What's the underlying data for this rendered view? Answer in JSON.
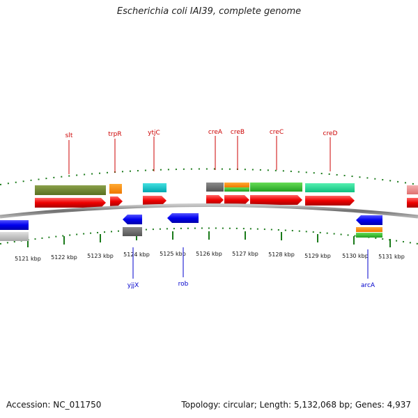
{
  "title": "Escherichia coli IAI39, complete genome",
  "footer": {
    "accession": "Accession: NC_011750",
    "topology": "Topology: circular; Length: 5,132,068 bp; Genes: 4,937"
  },
  "colors": {
    "top_label": "#cc0000",
    "bottom_label": "#0000cc",
    "tick": "#1a7a1a",
    "backbone": "#8a8a8a"
  },
  "scale_labels": [
    "5121 kbp",
    "5122 kbp",
    "5123 kbp",
    "5124 kbp",
    "5125 kbp",
    "5126 kbp",
    "5127 kbp",
    "5128 kbp",
    "5129 kbp",
    "5130 kbp",
    "5131 kbp"
  ],
  "genes_top": [
    {
      "name": "slt",
      "color": "#cc0000"
    },
    {
      "name": "trpR",
      "color": "#cc0000"
    },
    {
      "name": "ytjC",
      "color": "#cc0000"
    },
    {
      "name": "creA",
      "color": "#cc0000"
    },
    {
      "name": "creB",
      "color": "#cc0000"
    },
    {
      "name": "creC",
      "color": "#cc0000"
    },
    {
      "name": "creD",
      "color": "#cc0000"
    }
  ],
  "genes_bottom": [
    {
      "name": "yjjX",
      "color": "#0000cc"
    },
    {
      "name": "rob",
      "color": "#0000cc"
    },
    {
      "name": "arcA",
      "color": "#0000cc"
    }
  ]
}
